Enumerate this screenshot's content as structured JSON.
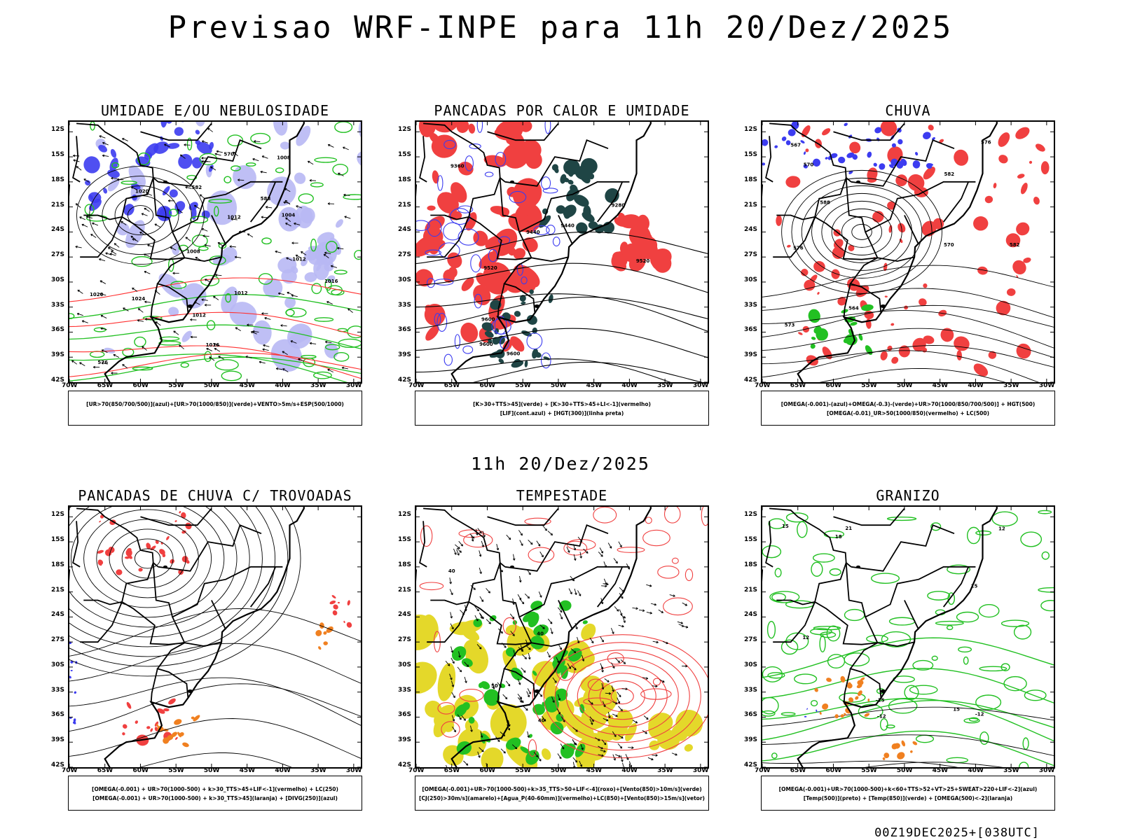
{
  "main_title": "Previsao WRF-INPE  para 11h 20/Dez/2025",
  "mid_title": "11h 20/Dez/2025",
  "footer": "00Z19DEC2025+[038UTC]",
  "lat_labels": [
    "12S",
    "15S",
    "18S",
    "21S",
    "24S",
    "27S",
    "30S",
    "33S",
    "36S",
    "39S",
    "42S"
  ],
  "lon_labels": [
    "70W",
    "65W",
    "60W",
    "55W",
    "50W",
    "45W",
    "40W",
    "35W",
    "30W"
  ],
  "panels": [
    {
      "title": "UMIDADE E/OU NEBULOSIDADE",
      "legend": [
        "[UR>70(850/700/500)](azul)+[UR>70(1000/850)](verde)+VENTO>5m/s+ESP(500/1000)"
      ],
      "contour_labels": [
        "1012",
        "1012",
        "1012",
        "1016",
        "1008",
        "1008",
        "1020",
        "1024",
        "1020",
        "1012",
        "576",
        "570",
        "582",
        "588",
        "1004",
        "1016"
      ],
      "colors": {
        "primary": "#3c3cf0",
        "secondary": "#22c022",
        "accent": "#ff3030"
      }
    },
    {
      "title": "PANCADAS POR CALOR E UMIDADE",
      "legend": [
        "[K>30+TTS>45](verde) + [K>30+TTS>45+LI<-1](vermelho)",
        "[LIF](cont.azul) + [HGT(300)](linha preta)"
      ],
      "contour_labels": [
        "9600",
        "9600",
        "9520",
        "9520",
        "9440",
        "9440",
        "9360",
        "9280",
        "9600"
      ],
      "colors": {
        "primary": "#f04040",
        "secondary": "#1f4545",
        "accent": "#3c3cf0"
      }
    },
    {
      "title": "CHUVA",
      "legend": [
        "[OMEGA(-0.001)-(azul)+OMEGA(-0.3)-(verde)+UR>70(1000/850/700/500)] + HGT(500)",
        "[OMEGA(-0.01)_UR>50(1000/850)(vermelho) + LC(500)"
      ],
      "contour_labels": [
        "588",
        "582",
        "576",
        "570",
        "576",
        "570",
        "573",
        "582",
        "567",
        "564"
      ],
      "colors": {
        "primary": "#f04040",
        "secondary": "#22c022",
        "accent": "#3c3cf0"
      }
    },
    {
      "title": "PANCADAS DE CHUVA C/ TROVOADAS",
      "legend": [
        "[OMEGA(-0.001) + UR>70(1000-500) + k>30_TTS>45+LIF<-1](vermelho) + LC(250)",
        "[OMEGA(-0.001) + UR>70(1000-500) + k>30_TTS>45](laranja) + [DIVG(250)](azul)"
      ],
      "contour_labels": [],
      "colors": {
        "primary": "#f04040",
        "secondary": "#f08020",
        "accent": "#3c3cf0"
      }
    },
    {
      "title": "TEMPESTADE",
      "legend": [
        "[OMEGA(-0.001)+UR>70(1000-500)+k>35_TTS>50+LIF<-4](roxo)+[Vento(850)>10m/s](verde)",
        "[CJ(250)>30m/s](amarelo)+[Agua_P(40-60mm)](vermelho)+LC(850)+[Vento(850)>15m/s](vetor)"
      ],
      "contour_labels": [
        "40",
        "40",
        "50",
        "40"
      ],
      "colors": {
        "primary": "#e4d82a",
        "secondary": "#22c022",
        "accent": "#f04040"
      }
    },
    {
      "title": "GRANIZO",
      "legend": [
        "[OMEGA(-0.001)+UR>70(1000-500)+k<60+TTS>52+VT>25+SWEAT>220+LIF<-2](azul)",
        "[Temp(500)](preto) + [Temp(850)](verde) + [OMEGA(500)<-2](laranja)"
      ],
      "contour_labels": [
        "15",
        "15",
        "12",
        "-12",
        "-15",
        "15",
        "12",
        "18",
        "21",
        "-12"
      ],
      "colors": {
        "primary": "#22c022",
        "secondary": "#f08020",
        "accent": "#3c3cf0"
      }
    }
  ]
}
